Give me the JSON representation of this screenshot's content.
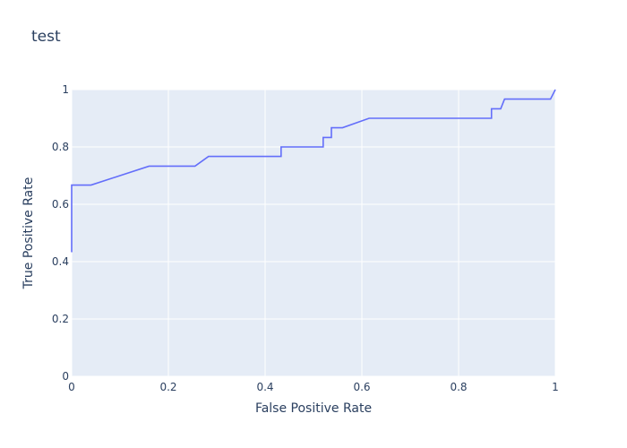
{
  "chart_data": {
    "type": "line",
    "title": "test",
    "xlabel": "False Positive Rate",
    "ylabel": "True Positive Rate",
    "xlim": [
      0,
      1
    ],
    "ylim": [
      0,
      1
    ],
    "grid": true,
    "x_ticks": [
      0,
      0.2,
      0.4,
      0.6,
      0.8,
      1
    ],
    "x_tick_labels": [
      "0",
      "0.2",
      "0.4",
      "0.6",
      "0.8",
      "1"
    ],
    "y_ticks": [
      0,
      0.2,
      0.4,
      0.6,
      0.8,
      1
    ],
    "y_tick_labels": [
      "0",
      "0.2",
      "0.4",
      "0.6",
      "0.8",
      "1"
    ],
    "colors": {
      "line": "#636efa",
      "plot_bg": "#e5ecf6",
      "grid": "#ffffff",
      "text": "#2a3f5f"
    },
    "series": [
      {
        "x": [
          0,
          0,
          0.04,
          0.1,
          0.16,
          0.255,
          0.283,
          0.433,
          0.433,
          0.52,
          0.52,
          0.537,
          0.537,
          0.56,
          0.615,
          0.868,
          0.868,
          0.887,
          0.895,
          0.99,
          1
        ],
        "y": [
          0.433,
          0.667,
          0.667,
          0.7,
          0.733,
          0.733,
          0.767,
          0.767,
          0.8,
          0.8,
          0.833,
          0.833,
          0.867,
          0.867,
          0.9,
          0.9,
          0.933,
          0.933,
          0.967,
          0.967,
          1
        ]
      }
    ]
  }
}
